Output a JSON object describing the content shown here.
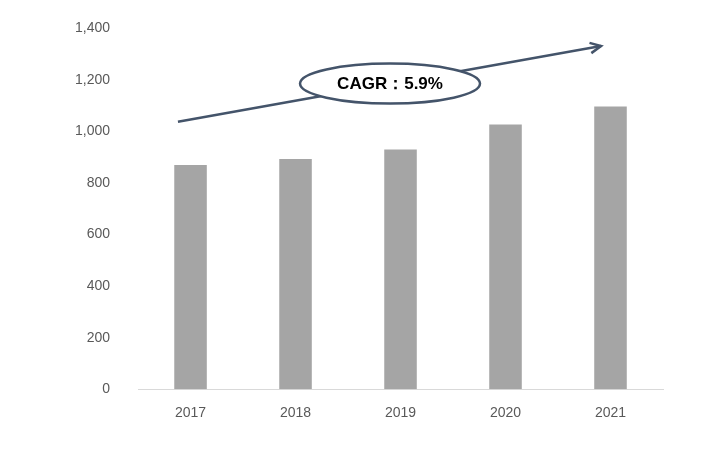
{
  "chart_data": {
    "type": "bar",
    "categories": [
      "2017",
      "2018",
      "2019",
      "2020",
      "2021"
    ],
    "values": [
      870,
      893,
      930,
      1027,
      1097
    ],
    "color": "#a5a5a5",
    "ylim": [
      0,
      1400
    ],
    "yticks": [
      0,
      200,
      400,
      600,
      800,
      {
        "value": 1000,
        "label": "1,000"
      },
      {
        "value": 1200,
        "label": "1,200"
      },
      {
        "value": 1400,
        "label": "1,400"
      }
    ],
    "grid": false,
    "annotation": "CAGR：5.9%"
  }
}
